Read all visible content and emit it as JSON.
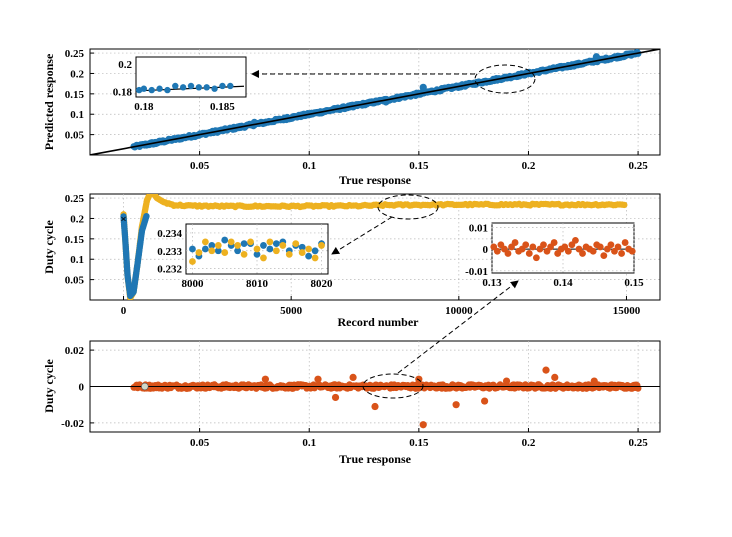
{
  "chart_data": [
    {
      "id": "top",
      "type": "scatter",
      "xlabel": "True response",
      "ylabel": "Predicted response",
      "xlim": [
        0,
        0.26
      ],
      "ylim": [
        0,
        0.26
      ],
      "x_ticks": [
        "0.05",
        "0.1",
        "0.15",
        "0.2",
        "0.25"
      ],
      "y_ticks": [
        "0.05",
        "0.1",
        "0.15",
        "0.2",
        "0.25"
      ],
      "x_tick_values": [
        0.05,
        0.1,
        0.15,
        0.2,
        0.25
      ],
      "y_tick_values": [
        0.05,
        0.1,
        0.15,
        0.2,
        0.25
      ],
      "grid": true,
      "series": [
        {
          "color": "#1f77b4",
          "x_range": [
            0.02,
            0.25
          ],
          "relation": "y = x",
          "outliers": [
            [
              0.152,
              0.166
            ],
            [
              0.231,
              0.241
            ],
            [
              0.075,
              0.08
            ],
            [
              0.09,
              0.092
            ],
            [
              0.12,
              0.118
            ],
            [
              0.135,
              0.13
            ],
            [
              0.03,
              0.028
            ]
          ]
        },
        {
          "color": "#000000",
          "relation": "y = x",
          "x_range": [
            0,
            0.26
          ]
        }
      ],
      "inset": {
        "xlim": [
          0.1795,
          0.1865
        ],
        "ylim": [
          0.176,
          0.205
        ],
        "x_ticks": [
          "0.18",
          "0.185"
        ],
        "x_tick_values": [
          0.18,
          0.185
        ],
        "y_ticks": [
          "0.2",
          "0.18"
        ],
        "y_tick_values": [
          0.2,
          0.18
        ],
        "points": [
          [
            0.1797,
            0.181
          ],
          [
            0.18,
            0.182
          ],
          [
            0.1805,
            0.181
          ],
          [
            0.181,
            0.182
          ],
          [
            0.1815,
            0.181
          ],
          [
            0.182,
            0.184
          ],
          [
            0.1825,
            0.183
          ],
          [
            0.183,
            0.184
          ],
          [
            0.1835,
            0.183
          ],
          [
            0.184,
            0.183
          ],
          [
            0.1845,
            0.182
          ],
          [
            0.185,
            0.184
          ],
          [
            0.1855,
            0.184
          ]
        ]
      }
    },
    {
      "id": "middle",
      "type": "line",
      "xlabel": "Record number",
      "ylabel": "Duty cycle",
      "xlim": [
        -1000,
        16000
      ],
      "ylim": [
        0,
        0.26
      ],
      "x_ticks": [
        "0",
        "5000",
        "10000",
        "15000"
      ],
      "x_tick_values": [
        0,
        5000,
        10000,
        15000
      ],
      "y_ticks": [
        "0.05",
        "0.1",
        "0.15",
        "0.2",
        "0.25"
      ],
      "y_tick_values": [
        0.05,
        0.1,
        0.15,
        0.2,
        0.25
      ],
      "grid": true,
      "series": [
        {
          "color": "#edb120",
          "points": [
            [
              0,
              0.21
            ],
            [
              50,
              0.15
            ],
            [
              120,
              0.06
            ],
            [
              200,
              0.005
            ],
            [
              300,
              0.02
            ],
            [
              420,
              0.09
            ],
            [
              550,
              0.18
            ],
            [
              700,
              0.245
            ],
            [
              800,
              0.262
            ],
            [
              900,
              0.26
            ],
            [
              1000,
              0.25
            ],
            [
              1200,
              0.24
            ],
            [
              1500,
              0.233
            ],
            [
              2000,
              0.231
            ],
            [
              3000,
              0.23
            ],
            [
              5000,
              0.23
            ],
            [
              7000,
              0.231
            ],
            [
              8000,
              0.233
            ],
            [
              10000,
              0.234
            ],
            [
              12000,
              0.234
            ],
            [
              15000,
              0.234
            ]
          ]
        },
        {
          "color": "#1f77b4",
          "points": [
            [
              0,
              0.205
            ],
            [
              50,
              0.15
            ],
            [
              120,
              0.06
            ],
            [
              200,
              0.01
            ],
            [
              300,
              0.02
            ],
            [
              420,
              0.09
            ],
            [
              550,
              0.17
            ],
            [
              700,
              0.21
            ]
          ]
        }
      ],
      "inset_left": {
        "xlim": [
          7999,
          8021
        ],
        "ylim": [
          0.2317,
          0.2345
        ],
        "x_ticks": [
          "8000",
          "8010",
          "8020"
        ],
        "x_tick_values": [
          8000,
          8010,
          8020
        ],
        "y_ticks": [
          "0.234",
          "0.233",
          "0.232"
        ],
        "y_tick_values": [
          0.234,
          0.233,
          0.232
        ],
        "series": [
          {
            "color": "#1f77b4",
            "values": [
              0.2331,
              0.2327,
              0.2331,
              0.2333,
              0.233,
              0.2336,
              0.2333,
              0.233,
              0.2334,
              0.2334,
              0.2328,
              0.2333,
              0.2331,
              0.2334,
              0.2335,
              0.233,
              0.2333,
              0.2332,
              0.2327,
              0.233,
              0.2334
            ]
          },
          {
            "color": "#edb120",
            "values": [
              0.2324,
              0.2329,
              0.2335,
              0.233,
              0.2333,
              0.2329,
              0.2335,
              0.2333,
              0.2328,
              0.2335,
              0.2331,
              0.2326,
              0.2335,
              0.233,
              0.2333,
              0.2328,
              0.2334,
              0.2329,
              0.2331,
              0.2326,
              0.2333
            ]
          }
        ]
      },
      "inset_right": {
        "xlim": [
          0.13,
          0.15
        ],
        "ylim": [
          -0.011,
          0.012
        ],
        "x_ticks": [
          "0.13",
          "0.14",
          "0.15"
        ],
        "x_tick_values": [
          0.13,
          0.14,
          0.15
        ],
        "y_ticks": [
          "0.01",
          "0",
          "-0.01"
        ],
        "y_tick_values": [
          0.01,
          0,
          -0.01
        ],
        "color": "#d95319",
        "values": [
          0.001,
          -0.001,
          0.002,
          0.0,
          -0.002,
          0.001,
          0.003,
          -0.001,
          0.0,
          0.002,
          -0.002,
          0.001,
          -0.004,
          0.0,
          0.002,
          -0.001,
          0.001,
          0.003,
          -0.002,
          0.0,
          0.001,
          -0.001,
          0.002,
          0.004,
          0.0,
          -0.002,
          0.001,
          0.0,
          -0.001,
          0.002,
          0.001,
          -0.003,
          0.0,
          0.002,
          -0.001,
          0.001,
          -0.002,
          0.003,
          0.0,
          -0.001
        ]
      }
    },
    {
      "id": "bottom",
      "type": "scatter",
      "xlabel": "True response",
      "ylabel": "Duty cycle",
      "xlim": [
        0,
        0.26
      ],
      "ylim": [
        -0.025,
        0.025
      ],
      "x_ticks": [
        "0.05",
        "0.1",
        "0.15",
        "0.2",
        "0.25"
      ],
      "x_tick_values": [
        0.05,
        0.1,
        0.15,
        0.2,
        0.25
      ],
      "y_ticks": [
        "0.02",
        "0",
        "-0.02"
      ],
      "y_tick_values": [
        0.02,
        0,
        -0.02
      ],
      "grid": true,
      "series": [
        {
          "color": "#d95319",
          "x_range": [
            0.02,
            0.25
          ],
          "outliers": [
            [
              0.152,
              -0.021
            ],
            [
              0.208,
              0.009
            ],
            [
              0.212,
              0.005
            ],
            [
              0.12,
              0.005
            ],
            [
              0.13,
              -0.011
            ],
            [
              0.167,
              -0.01
            ],
            [
              0.112,
              -0.006
            ],
            [
              0.18,
              -0.008
            ],
            [
              0.08,
              0.004
            ],
            [
              0.15,
              0.004
            ],
            [
              0.104,
              0.004
            ],
            [
              0.23,
              0.003
            ],
            [
              0.19,
              0.003
            ]
          ]
        },
        {
          "color": "#000000",
          "relation": "y = 0"
        }
      ]
    }
  ]
}
